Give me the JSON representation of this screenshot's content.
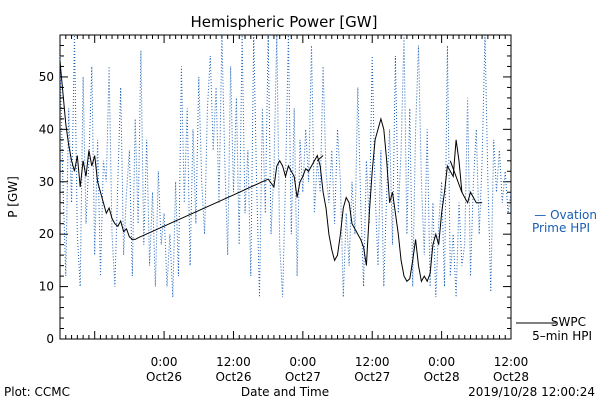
{
  "chart_data": {
    "type": "line",
    "title": "Hemispheric Power [GW]",
    "ylabel": "P [GW]",
    "xlabel": "Date and Time",
    "ylim": [
      0,
      58
    ],
    "xlim_hours": [
      -18,
      60
    ],
    "y_ticks": [
      0,
      10,
      20,
      30,
      40,
      50
    ],
    "x_ticks": [
      {
        "hour": 0,
        "time": "0:00",
        "date": "Oct26"
      },
      {
        "hour": 12,
        "time": "12:00",
        "date": "Oct26"
      },
      {
        "hour": 24,
        "time": "0:00",
        "date": "Oct27"
      },
      {
        "hour": 36,
        "time": "12:00",
        "date": "Oct27"
      },
      {
        "hour": 48,
        "time": "0:00",
        "date": "Oct28"
      },
      {
        "hour": 60,
        "time": "12:00",
        "date": "Oct28"
      }
    ],
    "grid": false,
    "legend_placement": "right",
    "series": [
      {
        "name": "Ovation Prime HPI",
        "legend_lines": [
          "— Ovation",
          "Prime HPI"
        ],
        "color": "#1a5fb4",
        "style": "dotted",
        "points": [
          [
            -18,
            54
          ],
          [
            -17.5,
            30
          ],
          [
            -17,
            12
          ],
          [
            -16.5,
            44
          ],
          [
            -16,
            26
          ],
          [
            -15.5,
            58
          ],
          [
            -15,
            20
          ],
          [
            -14.5,
            10
          ],
          [
            -14,
            50
          ],
          [
            -13.5,
            22
          ],
          [
            -13,
            34
          ],
          [
            -12.5,
            52
          ],
          [
            -12,
            16
          ],
          [
            -11.5,
            38
          ],
          [
            -11,
            12
          ],
          [
            -10.5,
            34
          ],
          [
            -10,
            30
          ],
          [
            -9.5,
            52
          ],
          [
            -9,
            20
          ],
          [
            -8.5,
            10
          ],
          [
            -8,
            30
          ],
          [
            -7.5,
            48
          ],
          [
            -7,
            16
          ],
          [
            -6.5,
            28
          ],
          [
            -6,
            36
          ],
          [
            -5.5,
            12
          ],
          [
            -5,
            42
          ],
          [
            -4.5,
            22
          ],
          [
            -4,
            55
          ],
          [
            -3.5,
            18
          ],
          [
            -3,
            38
          ],
          [
            -2.5,
            14
          ],
          [
            -2,
            28
          ],
          [
            -1.5,
            10
          ],
          [
            -1,
            32
          ],
          [
            -0.5,
            18
          ],
          [
            0,
            24
          ],
          [
            0.5,
            10
          ],
          [
            1,
            20
          ],
          [
            1.5,
            8
          ],
          [
            2,
            30
          ],
          [
            2.5,
            12
          ],
          [
            3,
            52
          ],
          [
            3.5,
            26
          ],
          [
            4,
            44
          ],
          [
            4.5,
            14
          ],
          [
            5,
            40
          ],
          [
            5.5,
            22
          ],
          [
            6,
            50
          ],
          [
            6.5,
            30
          ],
          [
            7,
            20
          ],
          [
            7.5,
            44
          ],
          [
            8,
            54
          ],
          [
            8.5,
            36
          ],
          [
            9,
            48
          ],
          [
            9.5,
            26
          ],
          [
            10,
            58
          ],
          [
            10.5,
            34
          ],
          [
            11,
            16
          ],
          [
            11.5,
            52
          ],
          [
            12,
            28
          ],
          [
            12.5,
            46
          ],
          [
            13,
            18
          ],
          [
            13.5,
            58
          ],
          [
            14,
            24
          ],
          [
            14.5,
            36
          ],
          [
            15,
            12
          ],
          [
            15.5,
            58
          ],
          [
            16,
            30
          ],
          [
            16.5,
            8
          ],
          [
            17,
            44
          ],
          [
            17.5,
            24
          ],
          [
            18,
            58
          ],
          [
            18.5,
            20
          ],
          [
            19,
            32
          ],
          [
            19.5,
            58
          ],
          [
            20,
            18
          ],
          [
            20.5,
            8
          ],
          [
            21,
            30
          ],
          [
            21.5,
            58
          ],
          [
            22,
            20
          ],
          [
            22.5,
            44
          ],
          [
            23,
            12
          ],
          [
            23.5,
            38
          ],
          [
            24,
            28
          ],
          [
            24.5,
            40
          ],
          [
            25,
            30
          ],
          [
            25.5,
            56
          ],
          [
            26,
            24
          ],
          [
            26.5,
            34
          ],
          [
            27,
            28
          ],
          [
            27.5,
            52
          ],
          [
            28,
            32
          ],
          [
            28.5,
            26
          ],
          [
            29,
            36
          ],
          [
            29.5,
            22
          ],
          [
            30,
            40
          ],
          [
            30.5,
            30
          ],
          [
            31,
            8
          ],
          [
            31.5,
            24
          ],
          [
            32,
            14
          ],
          [
            32.5,
            30
          ],
          [
            33,
            20
          ],
          [
            33.5,
            48
          ],
          [
            34,
            26
          ],
          [
            34.5,
            10
          ],
          [
            35,
            34
          ],
          [
            35.5,
            22
          ],
          [
            36,
            54
          ],
          [
            36.5,
            28
          ],
          [
            37,
            14
          ],
          [
            37.5,
            36
          ],
          [
            38,
            10
          ],
          [
            38.5,
            28
          ],
          [
            39,
            40
          ],
          [
            39.5,
            18
          ],
          [
            40,
            54
          ],
          [
            40.5,
            24
          ],
          [
            41,
            36
          ],
          [
            41.5,
            58
          ],
          [
            42,
            20
          ],
          [
            42.5,
            44
          ],
          [
            43,
            10
          ],
          [
            43.5,
            40
          ],
          [
            44,
            56
          ],
          [
            44.5,
            30
          ],
          [
            45,
            16
          ],
          [
            45.5,
            40
          ],
          [
            46,
            10
          ],
          [
            46.5,
            26
          ],
          [
            47,
            8
          ],
          [
            47.5,
            22
          ],
          [
            48,
            30
          ],
          [
            48.5,
            10
          ],
          [
            49,
            56
          ],
          [
            49.5,
            12
          ],
          [
            50,
            20
          ],
          [
            50.5,
            8
          ],
          [
            51,
            26
          ],
          [
            51.5,
            14
          ],
          [
            52,
            18
          ],
          [
            52.5,
            46
          ],
          [
            53,
            12
          ],
          [
            53.5,
            30
          ],
          [
            54,
            40
          ],
          [
            54.5,
            20
          ],
          [
            55,
            34
          ],
          [
            55.5,
            58
          ],
          [
            56,
            30
          ],
          [
            56.5,
            9
          ],
          [
            57,
            38
          ],
          [
            57.5,
            28
          ],
          [
            58,
            36
          ],
          [
            58.5,
            26
          ],
          [
            59,
            32
          ],
          [
            59.5,
            24
          ],
          [
            60,
            28
          ]
        ]
      },
      {
        "name": "SWPC 5-min HPI",
        "legend_lines": [
          "SWPC",
          "5–min HPI"
        ],
        "color": "#000000",
        "style": "solid",
        "points": [
          [
            -18,
            53
          ],
          [
            -17.5,
            47
          ],
          [
            -17,
            41
          ],
          [
            -16.5,
            37
          ],
          [
            -16,
            34
          ],
          [
            -15.5,
            32
          ],
          [
            -15,
            35
          ],
          [
            -14.5,
            29
          ],
          [
            -14,
            34
          ],
          [
            -13.5,
            31
          ],
          [
            -13,
            36
          ],
          [
            -12.5,
            33
          ],
          [
            -12,
            35
          ],
          [
            -11.5,
            30
          ],
          [
            -11,
            28
          ],
          [
            -10.5,
            26
          ],
          [
            -10,
            24
          ],
          [
            -9.5,
            25
          ],
          [
            -9,
            23
          ],
          [
            -8.5,
            22
          ],
          [
            -8,
            21.5
          ],
          [
            -7.5,
            22.5
          ],
          [
            -7,
            20.5
          ],
          [
            -6.5,
            21
          ],
          [
            -6,
            19.5
          ],
          [
            -5.5,
            19
          ],
          [
            -5,
            19
          ],
          [
            -4.5,
            19.3
          ],
          [
            6,
            24.5
          ],
          [
            12,
            27.5
          ],
          [
            18,
            30.5
          ],
          [
            19,
            29
          ],
          [
            19.5,
            33
          ],
          [
            20,
            34
          ],
          [
            20.5,
            33
          ],
          [
            21,
            31
          ],
          [
            21.5,
            33
          ],
          [
            22,
            32
          ],
          [
            22.5,
            31
          ],
          [
            23,
            27
          ],
          [
            23.5,
            30
          ],
          [
            24,
            31
          ],
          [
            24.5,
            32.5
          ],
          [
            25,
            32
          ],
          [
            25.5,
            33
          ],
          [
            26,
            34
          ],
          [
            26.5,
            35
          ],
          [
            27,
            33
          ],
          [
            27.5,
            28
          ],
          [
            28,
            25
          ],
          [
            28.5,
            20
          ],
          [
            29,
            17
          ],
          [
            29.5,
            15
          ],
          [
            30,
            16
          ],
          [
            30.5,
            20
          ],
          [
            31,
            25
          ],
          [
            31.5,
            27
          ],
          [
            32,
            26
          ],
          [
            32.5,
            22
          ],
          [
            33,
            21
          ],
          [
            33.5,
            20
          ],
          [
            34,
            19
          ],
          [
            34.5,
            17.5
          ],
          [
            35,
            14
          ],
          [
            35.5,
            24
          ],
          [
            36,
            32
          ],
          [
            36.5,
            38
          ],
          [
            37,
            40
          ],
          [
            37.5,
            42
          ],
          [
            38,
            40
          ],
          [
            38.5,
            34
          ],
          [
            39,
            26
          ],
          [
            39.5,
            28
          ],
          [
            40,
            24
          ],
          [
            40.5,
            20
          ],
          [
            41,
            15
          ],
          [
            41.5,
            12
          ],
          [
            42,
            11
          ],
          [
            42.5,
            11.5
          ],
          [
            43,
            15
          ],
          [
            43.5,
            19
          ],
          [
            44,
            14
          ],
          [
            44.5,
            11
          ],
          [
            45,
            12
          ],
          [
            45.5,
            11
          ],
          [
            46,
            12.5
          ],
          [
            46.5,
            18
          ],
          [
            47,
            20
          ],
          [
            47.5,
            18
          ],
          [
            48,
            24
          ],
          [
            48.5,
            28
          ],
          [
            49,
            33
          ],
          [
            49.5,
            32
          ],
          [
            50,
            31
          ],
          [
            50.5,
            38
          ],
          [
            51,
            34
          ],
          [
            51.5,
            28
          ],
          [
            52,
            27
          ],
          [
            52.5,
            26
          ],
          [
            53,
            28
          ],
          [
            53.5,
            27
          ],
          [
            54,
            26
          ],
          [
            54.5,
            26
          ],
          [
            55,
            26
          ]
        ],
        "overlay_segments": [
          [
            [
              26.5,
              34
            ],
            [
              27.5,
              35
            ]
          ],
          [
            [
              49.5,
              34
            ],
            [
              51.5,
              28
            ]
          ]
        ]
      }
    ]
  },
  "footer": {
    "left": "Plot: CCMC",
    "center": "Date and Time",
    "right": "2019/10/28 12:00:24"
  }
}
